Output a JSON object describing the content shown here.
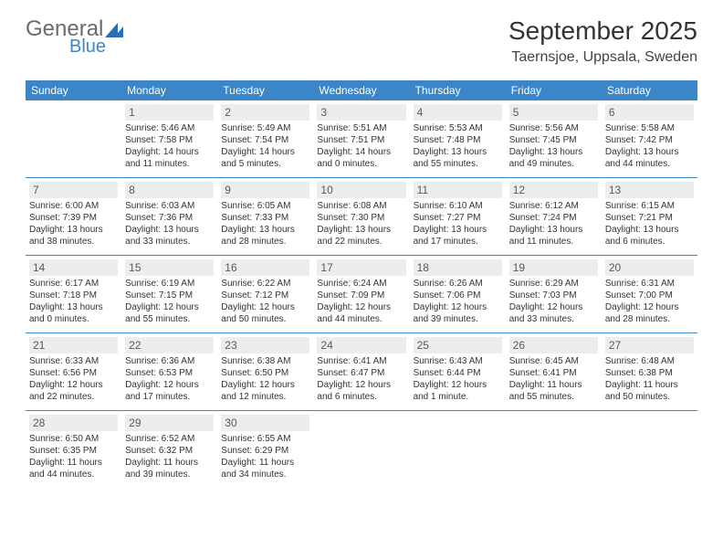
{
  "logo": {
    "text1": "General",
    "text2": "Blue"
  },
  "header": {
    "month_title": "September 2025",
    "location": "Taernsjoe, Uppsala, Sweden"
  },
  "colors": {
    "header_bg": "#3a86c8",
    "header_fg": "#ffffff",
    "daynum_bg": "#ecedee",
    "row_divider": "#3a86c8"
  },
  "weekdays": [
    "Sunday",
    "Monday",
    "Tuesday",
    "Wednesday",
    "Thursday",
    "Friday",
    "Saturday"
  ],
  "weeks": [
    [
      null,
      {
        "n": "1",
        "sr": "Sunrise: 5:46 AM",
        "ss": "Sunset: 7:58 PM",
        "d1": "Daylight: 14 hours",
        "d2": "and 11 minutes."
      },
      {
        "n": "2",
        "sr": "Sunrise: 5:49 AM",
        "ss": "Sunset: 7:54 PM",
        "d1": "Daylight: 14 hours",
        "d2": "and 5 minutes."
      },
      {
        "n": "3",
        "sr": "Sunrise: 5:51 AM",
        "ss": "Sunset: 7:51 PM",
        "d1": "Daylight: 14 hours",
        "d2": "and 0 minutes."
      },
      {
        "n": "4",
        "sr": "Sunrise: 5:53 AM",
        "ss": "Sunset: 7:48 PM",
        "d1": "Daylight: 13 hours",
        "d2": "and 55 minutes."
      },
      {
        "n": "5",
        "sr": "Sunrise: 5:56 AM",
        "ss": "Sunset: 7:45 PM",
        "d1": "Daylight: 13 hours",
        "d2": "and 49 minutes."
      },
      {
        "n": "6",
        "sr": "Sunrise: 5:58 AM",
        "ss": "Sunset: 7:42 PM",
        "d1": "Daylight: 13 hours",
        "d2": "and 44 minutes."
      }
    ],
    [
      {
        "n": "7",
        "sr": "Sunrise: 6:00 AM",
        "ss": "Sunset: 7:39 PM",
        "d1": "Daylight: 13 hours",
        "d2": "and 38 minutes."
      },
      {
        "n": "8",
        "sr": "Sunrise: 6:03 AM",
        "ss": "Sunset: 7:36 PM",
        "d1": "Daylight: 13 hours",
        "d2": "and 33 minutes."
      },
      {
        "n": "9",
        "sr": "Sunrise: 6:05 AM",
        "ss": "Sunset: 7:33 PM",
        "d1": "Daylight: 13 hours",
        "d2": "and 28 minutes."
      },
      {
        "n": "10",
        "sr": "Sunrise: 6:08 AM",
        "ss": "Sunset: 7:30 PM",
        "d1": "Daylight: 13 hours",
        "d2": "and 22 minutes."
      },
      {
        "n": "11",
        "sr": "Sunrise: 6:10 AM",
        "ss": "Sunset: 7:27 PM",
        "d1": "Daylight: 13 hours",
        "d2": "and 17 minutes."
      },
      {
        "n": "12",
        "sr": "Sunrise: 6:12 AM",
        "ss": "Sunset: 7:24 PM",
        "d1": "Daylight: 13 hours",
        "d2": "and 11 minutes."
      },
      {
        "n": "13",
        "sr": "Sunrise: 6:15 AM",
        "ss": "Sunset: 7:21 PM",
        "d1": "Daylight: 13 hours",
        "d2": "and 6 minutes."
      }
    ],
    [
      {
        "n": "14",
        "sr": "Sunrise: 6:17 AM",
        "ss": "Sunset: 7:18 PM",
        "d1": "Daylight: 13 hours",
        "d2": "and 0 minutes."
      },
      {
        "n": "15",
        "sr": "Sunrise: 6:19 AM",
        "ss": "Sunset: 7:15 PM",
        "d1": "Daylight: 12 hours",
        "d2": "and 55 minutes."
      },
      {
        "n": "16",
        "sr": "Sunrise: 6:22 AM",
        "ss": "Sunset: 7:12 PM",
        "d1": "Daylight: 12 hours",
        "d2": "and 50 minutes."
      },
      {
        "n": "17",
        "sr": "Sunrise: 6:24 AM",
        "ss": "Sunset: 7:09 PM",
        "d1": "Daylight: 12 hours",
        "d2": "and 44 minutes."
      },
      {
        "n": "18",
        "sr": "Sunrise: 6:26 AM",
        "ss": "Sunset: 7:06 PM",
        "d1": "Daylight: 12 hours",
        "d2": "and 39 minutes."
      },
      {
        "n": "19",
        "sr": "Sunrise: 6:29 AM",
        "ss": "Sunset: 7:03 PM",
        "d1": "Daylight: 12 hours",
        "d2": "and 33 minutes."
      },
      {
        "n": "20",
        "sr": "Sunrise: 6:31 AM",
        "ss": "Sunset: 7:00 PM",
        "d1": "Daylight: 12 hours",
        "d2": "and 28 minutes."
      }
    ],
    [
      {
        "n": "21",
        "sr": "Sunrise: 6:33 AM",
        "ss": "Sunset: 6:56 PM",
        "d1": "Daylight: 12 hours",
        "d2": "and 22 minutes."
      },
      {
        "n": "22",
        "sr": "Sunrise: 6:36 AM",
        "ss": "Sunset: 6:53 PM",
        "d1": "Daylight: 12 hours",
        "d2": "and 17 minutes."
      },
      {
        "n": "23",
        "sr": "Sunrise: 6:38 AM",
        "ss": "Sunset: 6:50 PM",
        "d1": "Daylight: 12 hours",
        "d2": "and 12 minutes."
      },
      {
        "n": "24",
        "sr": "Sunrise: 6:41 AM",
        "ss": "Sunset: 6:47 PM",
        "d1": "Daylight: 12 hours",
        "d2": "and 6 minutes."
      },
      {
        "n": "25",
        "sr": "Sunrise: 6:43 AM",
        "ss": "Sunset: 6:44 PM",
        "d1": "Daylight: 12 hours",
        "d2": "and 1 minute."
      },
      {
        "n": "26",
        "sr": "Sunrise: 6:45 AM",
        "ss": "Sunset: 6:41 PM",
        "d1": "Daylight: 11 hours",
        "d2": "and 55 minutes."
      },
      {
        "n": "27",
        "sr": "Sunrise: 6:48 AM",
        "ss": "Sunset: 6:38 PM",
        "d1": "Daylight: 11 hours",
        "d2": "and 50 minutes."
      }
    ],
    [
      {
        "n": "28",
        "sr": "Sunrise: 6:50 AM",
        "ss": "Sunset: 6:35 PM",
        "d1": "Daylight: 11 hours",
        "d2": "and 44 minutes."
      },
      {
        "n": "29",
        "sr": "Sunrise: 6:52 AM",
        "ss": "Sunset: 6:32 PM",
        "d1": "Daylight: 11 hours",
        "d2": "and 39 minutes."
      },
      {
        "n": "30",
        "sr": "Sunrise: 6:55 AM",
        "ss": "Sunset: 6:29 PM",
        "d1": "Daylight: 11 hours",
        "d2": "and 34 minutes."
      },
      null,
      null,
      null,
      null
    ]
  ]
}
